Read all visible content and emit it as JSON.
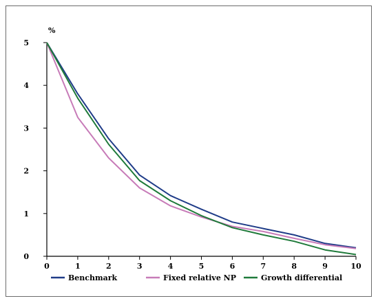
{
  "chart_data": {
    "type": "line",
    "title": "",
    "xlabel": "",
    "ylabel": "%",
    "x": [
      0,
      1,
      2,
      3,
      4,
      5,
      6,
      7,
      8,
      9,
      10
    ],
    "xlim": [
      0,
      10
    ],
    "ylim": [
      0,
      5
    ],
    "xticks": [
      0,
      1,
      2,
      3,
      4,
      5,
      6,
      7,
      8,
      9,
      10
    ],
    "yticks": [
      0,
      1,
      2,
      3,
      4,
      5
    ],
    "grid": false,
    "legend_position": "bottom",
    "series": [
      {
        "name": "Benchmark",
        "color": "#1f3c88",
        "values": [
          5.0,
          3.8,
          2.75,
          1.9,
          1.42,
          1.1,
          0.8,
          0.65,
          0.5,
          0.3,
          0.2
        ]
      },
      {
        "name": "Fixed relative NP",
        "color": "#c77bb8",
        "values": [
          5.0,
          3.25,
          2.3,
          1.6,
          1.18,
          0.92,
          0.7,
          0.58,
          0.42,
          0.27,
          0.18
        ]
      },
      {
        "name": "Growth differential",
        "color": "#1f7a3a",
        "values": [
          5.0,
          3.7,
          2.62,
          1.77,
          1.3,
          0.95,
          0.67,
          0.5,
          0.35,
          0.15,
          0.04
        ]
      }
    ]
  }
}
